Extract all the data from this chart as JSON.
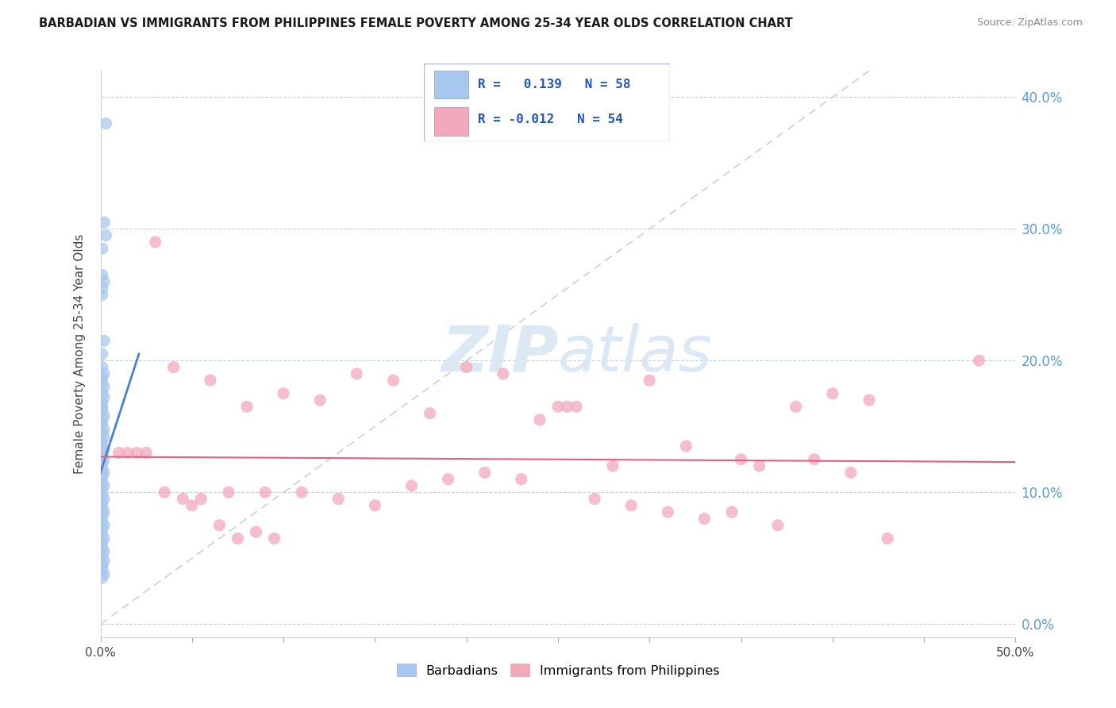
{
  "title": "BARBADIAN VS IMMIGRANTS FROM PHILIPPINES FEMALE POVERTY AMONG 25-34 YEAR OLDS CORRELATION CHART",
  "source": "Source: ZipAtlas.com",
  "ylabel": "Female Poverty Among 25-34 Year Olds",
  "xlim": [
    0.0,
    0.5
  ],
  "ylim": [
    -0.01,
    0.42
  ],
  "yticks": [
    0.0,
    0.1,
    0.2,
    0.3,
    0.4
  ],
  "blue_color": "#a8c8f0",
  "pink_color": "#f4a8bc",
  "blue_line_color": "#4a80cc",
  "pink_line_color": "#e06080",
  "diag_line_color": "#c8d0dc",
  "watermark_color": "#dce8f4",
  "right_tick_color": "#5b9bd5",
  "barbadians_x": [
    0.003,
    0.001,
    0.002,
    0.001,
    0.003,
    0.002,
    0.001,
    0.001,
    0.002,
    0.001,
    0.001,
    0.002,
    0.001,
    0.001,
    0.002,
    0.001,
    0.002,
    0.001,
    0.001,
    0.001,
    0.002,
    0.001,
    0.001,
    0.002,
    0.001,
    0.002,
    0.001,
    0.001,
    0.002,
    0.001,
    0.002,
    0.001,
    0.001,
    0.002,
    0.001,
    0.001,
    0.002,
    0.001,
    0.001,
    0.002,
    0.001,
    0.001,
    0.002,
    0.001,
    0.001,
    0.002,
    0.001,
    0.001,
    0.002,
    0.001,
    0.001,
    0.002,
    0.001,
    0.002,
    0.001,
    0.001,
    0.002,
    0.001
  ],
  "barbadians_y": [
    0.38,
    0.265,
    0.305,
    0.285,
    0.295,
    0.26,
    0.255,
    0.25,
    0.215,
    0.205,
    0.195,
    0.19,
    0.187,
    0.183,
    0.18,
    0.175,
    0.172,
    0.168,
    0.165,
    0.162,
    0.158,
    0.155,
    0.152,
    0.148,
    0.145,
    0.142,
    0.138,
    0.135,
    0.132,
    0.128,
    0.125,
    0.122,
    0.118,
    0.115,
    0.112,
    0.108,
    0.105,
    0.102,
    0.098,
    0.095,
    0.092,
    0.088,
    0.085,
    0.082,
    0.078,
    0.075,
    0.072,
    0.068,
    0.065,
    0.062,
    0.058,
    0.055,
    0.052,
    0.048,
    0.045,
    0.042,
    0.038,
    0.035
  ],
  "philippines_x": [
    0.04,
    0.1,
    0.14,
    0.16,
    0.2,
    0.22,
    0.25,
    0.26,
    0.3,
    0.35,
    0.38,
    0.4,
    0.48,
    0.08,
    0.12,
    0.18,
    0.24,
    0.28,
    0.32,
    0.36,
    0.42,
    0.06,
    0.09,
    0.11,
    0.15,
    0.17,
    0.19,
    0.21,
    0.23,
    0.27,
    0.29,
    0.31,
    0.33,
    0.37,
    0.39,
    0.43,
    0.05,
    0.07,
    0.13,
    0.41,
    0.02,
    0.03,
    0.045,
    0.055,
    0.065,
    0.075,
    0.085,
    0.095,
    0.025,
    0.035,
    0.015,
    0.01,
    0.345,
    0.255
  ],
  "philippines_y": [
    0.195,
    0.175,
    0.19,
    0.185,
    0.195,
    0.19,
    0.165,
    0.165,
    0.185,
    0.125,
    0.165,
    0.175,
    0.2,
    0.165,
    0.17,
    0.16,
    0.155,
    0.12,
    0.135,
    0.12,
    0.17,
    0.185,
    0.1,
    0.1,
    0.09,
    0.105,
    0.11,
    0.115,
    0.11,
    0.095,
    0.09,
    0.085,
    0.08,
    0.075,
    0.125,
    0.065,
    0.09,
    0.1,
    0.095,
    0.115,
    0.13,
    0.29,
    0.095,
    0.095,
    0.075,
    0.065,
    0.07,
    0.065,
    0.13,
    0.1,
    0.13,
    0.13,
    0.085,
    0.165
  ]
}
